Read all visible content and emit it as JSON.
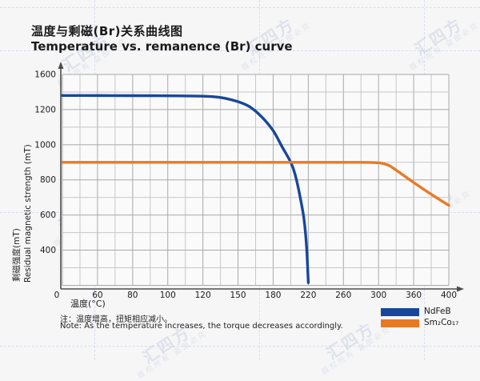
{
  "page": {
    "background": "#f6f6f6"
  },
  "title": {
    "zh": "温度与剩磁(Br)关系曲线图",
    "en": "Temperature vs. remanence (Br) curve"
  },
  "watermark": {
    "logo_text": "汇四方",
    "small_text": "版权所有 盗图必究",
    "color": "#aab4d4"
  },
  "chart_data": {
    "type": "line",
    "title": "Temperature vs. remanence (Br) curve",
    "xlabel": "温度(°C)",
    "ylabel_zh": "剩磁强度(mT)",
    "ylabel_en": "Residual magnetic strength (mT)",
    "x_tick_labels": [
      "0",
      "60",
      "80",
      "100",
      "120",
      "150",
      "180",
      "220",
      "260",
      "300",
      "360",
      "400"
    ],
    "x_tick_values": [
      0,
      60,
      80,
      100,
      120,
      150,
      180,
      220,
      260,
      300,
      360,
      400
    ],
    "y_tick_labels": [
      "1600",
      "1200",
      "1000",
      "800",
      "600",
      "400"
    ],
    "y_tick_values": [
      1600,
      1200,
      1000,
      800,
      600,
      400
    ],
    "grid": true,
    "legend_position": "bottom-right",
    "series": [
      {
        "name": "NdFeB",
        "color": "#17479d",
        "points": [
          [
            0,
            1360
          ],
          [
            40,
            1360
          ],
          [
            80,
            1359
          ],
          [
            100,
            1357
          ],
          [
            120,
            1352
          ],
          [
            135,
            1338
          ],
          [
            150,
            1290
          ],
          [
            160,
            1232
          ],
          [
            170,
            1160
          ],
          [
            180,
            1080
          ],
          [
            190,
            990
          ],
          [
            200,
            900
          ],
          [
            205,
            830
          ],
          [
            210,
            720
          ],
          [
            215,
            580
          ],
          [
            218,
            420
          ],
          [
            220,
            215
          ]
        ]
      },
      {
        "name": "Sm₂Co₁₇",
        "color": "#e87a25",
        "points": [
          [
            0,
            900
          ],
          [
            60,
            900
          ],
          [
            120,
            900
          ],
          [
            200,
            900
          ],
          [
            280,
            900
          ],
          [
            300,
            897
          ],
          [
            310,
            891
          ],
          [
            320,
            878
          ],
          [
            340,
            832
          ],
          [
            360,
            785
          ],
          [
            380,
            718
          ],
          [
            400,
            655
          ]
        ]
      }
    ]
  },
  "legend": {
    "items": [
      {
        "label": "NdFeB",
        "color": "#17479d"
      },
      {
        "label": "Sm₂Co₁₇",
        "color": "#e87a25"
      }
    ]
  },
  "notes": {
    "zh": "注：温度增高，扭矩相应减小。",
    "en": "Note: As the temperature increases, the torque decreases accordingly."
  }
}
